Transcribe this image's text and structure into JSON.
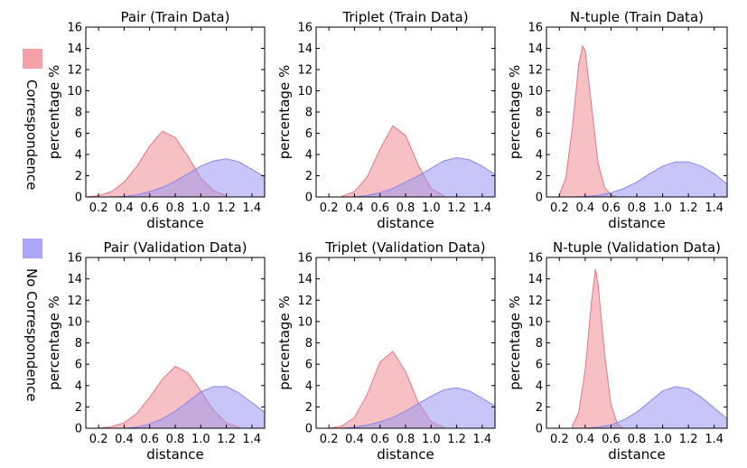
{
  "legend": {
    "correspondence": {
      "label": "Correspondence",
      "color": "#f4a0a6"
    },
    "no_correspondence": {
      "label": "No Correspondence",
      "color": "#a9a6f7"
    }
  },
  "colors": {
    "correspondence_fill": "#f08c94",
    "correspondence_line": "#e07880",
    "no_correspondence_fill": "#9b97f3",
    "no_correspondence_line": "#8a86e8"
  },
  "chart_data": [
    {
      "type": "area",
      "title": "Pair (Train Data)",
      "xlabel": "distance",
      "ylabel": "percentage %",
      "xlim": [
        0.1,
        1.5
      ],
      "ylim": [
        0,
        16
      ],
      "xticks": [
        "0.2",
        "0.4",
        "0.6",
        "0.8",
        "1.0",
        "1.2",
        "1.4"
      ],
      "yticks": [
        "0",
        "2",
        "4",
        "6",
        "8",
        "10",
        "12",
        "14",
        "16"
      ],
      "series": [
        {
          "name": "Correspondence",
          "x": [
            0.1,
            0.2,
            0.3,
            0.4,
            0.5,
            0.6,
            0.7,
            0.8,
            0.9,
            1.0,
            1.1,
            1.2
          ],
          "y": [
            0.0,
            0.12,
            0.5,
            1.4,
            2.9,
            4.8,
            6.2,
            5.6,
            3.8,
            1.8,
            0.6,
            0.1
          ]
        },
        {
          "name": "No Correspondence",
          "x": [
            0.3,
            0.4,
            0.5,
            0.6,
            0.7,
            0.8,
            0.9,
            1.0,
            1.1,
            1.2,
            1.3,
            1.4,
            1.5
          ],
          "y": [
            0.0,
            0.05,
            0.2,
            0.5,
            0.9,
            1.5,
            2.2,
            2.9,
            3.4,
            3.6,
            3.3,
            2.6,
            1.9
          ]
        }
      ]
    },
    {
      "type": "area",
      "title": "Triplet (Train Data)",
      "xlabel": "distance",
      "ylabel": "percentage %",
      "xlim": [
        0.1,
        1.5
      ],
      "ylim": [
        0,
        16
      ],
      "xticks": [
        "0.2",
        "0.4",
        "0.6",
        "0.8",
        "1.0",
        "1.2",
        "1.4"
      ],
      "yticks": [
        "0",
        "2",
        "4",
        "6",
        "8",
        "10",
        "12",
        "14",
        "16"
      ],
      "series": [
        {
          "name": "Correspondence",
          "x": [
            0.3,
            0.4,
            0.5,
            0.6,
            0.7,
            0.8,
            0.9,
            1.0,
            1.1
          ],
          "y": [
            0.05,
            0.5,
            1.9,
            4.5,
            6.7,
            5.8,
            3.0,
            0.8,
            0.1
          ]
        },
        {
          "name": "No Correspondence",
          "x": [
            0.4,
            0.5,
            0.6,
            0.7,
            0.8,
            0.9,
            1.0,
            1.1,
            1.2,
            1.3,
            1.4,
            1.5
          ],
          "y": [
            0.0,
            0.15,
            0.4,
            0.8,
            1.4,
            2.0,
            2.7,
            3.4,
            3.7,
            3.5,
            2.9,
            2.1
          ]
        }
      ]
    },
    {
      "type": "area",
      "title": "N-tuple (Train Data)",
      "xlabel": "distance",
      "ylabel": "percentage %",
      "xlim": [
        0.1,
        1.5
      ],
      "ylim": [
        0,
        16
      ],
      "xticks": [
        "0.2",
        "0.4",
        "0.6",
        "0.8",
        "1.0",
        "1.2",
        "1.4"
      ],
      "yticks": [
        "0",
        "2",
        "4",
        "6",
        "8",
        "10",
        "12",
        "14",
        "16"
      ],
      "series": [
        {
          "name": "Correspondence",
          "x": [
            0.2,
            0.25,
            0.3,
            0.35,
            0.38,
            0.4,
            0.45,
            0.5,
            0.55,
            0.6,
            0.65
          ],
          "y": [
            0.2,
            1.8,
            6.5,
            12.5,
            14.2,
            13.8,
            8.5,
            3.2,
            0.9,
            0.2,
            0.0
          ]
        },
        {
          "name": "No Correspondence",
          "x": [
            0.3,
            0.4,
            0.5,
            0.6,
            0.7,
            0.8,
            0.9,
            1.0,
            1.1,
            1.2,
            1.3,
            1.4,
            1.5
          ],
          "y": [
            0.0,
            0.05,
            0.15,
            0.4,
            0.8,
            1.4,
            2.2,
            2.9,
            3.3,
            3.3,
            2.9,
            2.2,
            1.2
          ]
        }
      ]
    },
    {
      "type": "area",
      "title": "Pair (Validation Data)",
      "xlabel": "distance",
      "ylabel": "percentage %",
      "xlim": [
        0.1,
        1.5
      ],
      "ylim": [
        0,
        16
      ],
      "xticks": [
        "0.2",
        "0.4",
        "0.6",
        "0.8",
        "1.0",
        "1.2",
        "1.4"
      ],
      "yticks": [
        "0",
        "2",
        "4",
        "6",
        "8",
        "10",
        "12",
        "14",
        "16"
      ],
      "series": [
        {
          "name": "Correspondence",
          "x": [
            0.2,
            0.3,
            0.4,
            0.5,
            0.6,
            0.7,
            0.8,
            0.9,
            1.0,
            1.1,
            1.2,
            1.3
          ],
          "y": [
            0.0,
            0.15,
            0.5,
            1.4,
            2.9,
            4.6,
            5.8,
            5.2,
            3.5,
            1.7,
            0.5,
            0.1
          ]
        },
        {
          "name": "No Correspondence",
          "x": [
            0.4,
            0.5,
            0.6,
            0.7,
            0.8,
            0.9,
            1.0,
            1.1,
            1.2,
            1.3,
            1.4,
            1.5
          ],
          "y": [
            0.0,
            0.1,
            0.4,
            0.9,
            1.6,
            2.5,
            3.4,
            3.9,
            3.9,
            3.3,
            2.4,
            1.5
          ]
        }
      ]
    },
    {
      "type": "area",
      "title": "Triplet (Validation Data)",
      "xlabel": "distance",
      "ylabel": "percentage %",
      "xlim": [
        0.1,
        1.5
      ],
      "ylim": [
        0,
        16
      ],
      "xticks": [
        "0.2",
        "0.4",
        "0.6",
        "0.8",
        "1.0",
        "1.2",
        "1.4"
      ],
      "yticks": [
        "0",
        "2",
        "4",
        "6",
        "8",
        "10",
        "12",
        "14",
        "16"
      ],
      "series": [
        {
          "name": "Correspondence",
          "x": [
            0.2,
            0.3,
            0.4,
            0.5,
            0.6,
            0.7,
            0.8,
            0.9,
            1.0,
            1.1
          ],
          "y": [
            0.0,
            0.2,
            1.0,
            3.2,
            6.2,
            7.2,
            5.3,
            2.4,
            0.6,
            0.1
          ]
        },
        {
          "name": "No Correspondence",
          "x": [
            0.3,
            0.4,
            0.5,
            0.6,
            0.7,
            0.8,
            0.9,
            1.0,
            1.1,
            1.2,
            1.3,
            1.4,
            1.5
          ],
          "y": [
            0.0,
            0.1,
            0.3,
            0.6,
            1.0,
            1.6,
            2.3,
            3.0,
            3.6,
            3.8,
            3.5,
            2.8,
            2.1
          ]
        }
      ]
    },
    {
      "type": "area",
      "title": "N-tuple (Validation Data)",
      "xlabel": "distance",
      "ylabel": "percentage %",
      "xlim": [
        0.1,
        1.5
      ],
      "ylim": [
        0,
        16
      ],
      "xticks": [
        "0.2",
        "0.4",
        "0.6",
        "0.8",
        "1.0",
        "1.2",
        "1.4"
      ],
      "yticks": [
        "0",
        "2",
        "4",
        "6",
        "8",
        "10",
        "12",
        "14",
        "16"
      ],
      "series": [
        {
          "name": "Correspondence",
          "x": [
            0.3,
            0.35,
            0.4,
            0.45,
            0.48,
            0.5,
            0.55,
            0.6,
            0.65,
            0.7
          ],
          "y": [
            0.2,
            1.5,
            5.5,
            12.0,
            14.9,
            13.5,
            7.0,
            2.2,
            0.4,
            0.0
          ]
        },
        {
          "name": "No Correspondence",
          "x": [
            0.4,
            0.5,
            0.6,
            0.7,
            0.8,
            0.9,
            1.0,
            1.1,
            1.2,
            1.3,
            1.4,
            1.5
          ],
          "y": [
            0.0,
            0.1,
            0.3,
            0.8,
            1.5,
            2.5,
            3.5,
            3.9,
            3.7,
            2.9,
            1.9,
            0.9
          ]
        }
      ]
    }
  ]
}
